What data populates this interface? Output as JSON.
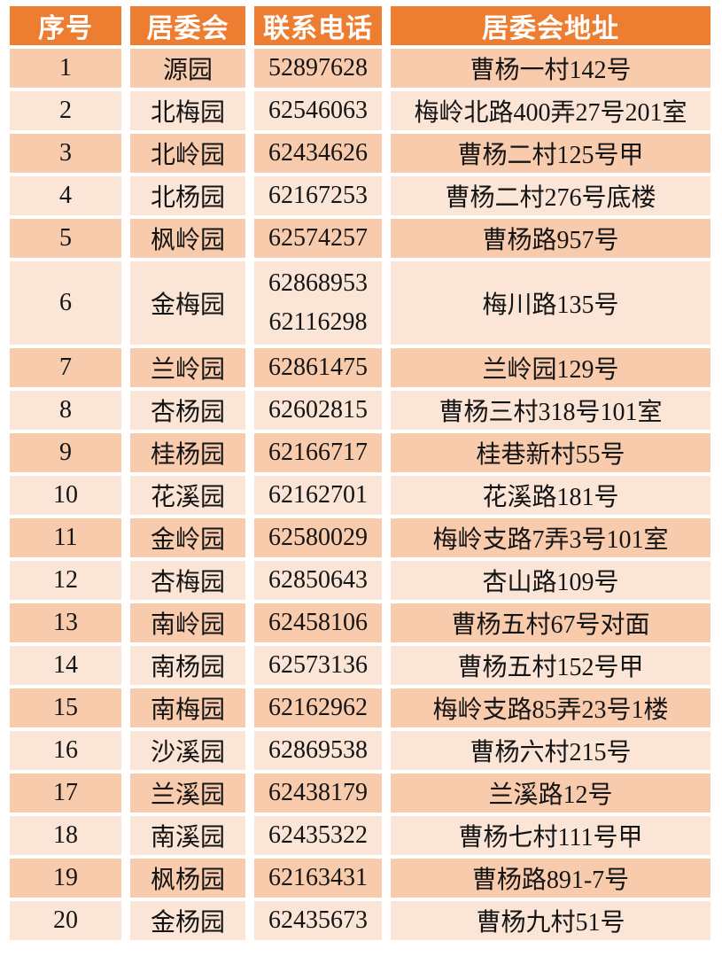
{
  "table": {
    "headers": [
      "序号",
      "居委会",
      "联系电话",
      "居委会地址"
    ],
    "rows": [
      {
        "no": "1",
        "name": "源园",
        "phones": [
          "52897628"
        ],
        "address": "曹杨一村142号"
      },
      {
        "no": "2",
        "name": "北梅园",
        "phones": [
          "62546063"
        ],
        "address": "梅岭北路400弄27号201室"
      },
      {
        "no": "3",
        "name": "北岭园",
        "phones": [
          "62434626"
        ],
        "address": "曹杨二村125号甲"
      },
      {
        "no": "4",
        "name": "北杨园",
        "phones": [
          "62167253"
        ],
        "address": "曹杨二村276号底楼"
      },
      {
        "no": "5",
        "name": "枫岭园",
        "phones": [
          "62574257"
        ],
        "address": "曹杨路957号"
      },
      {
        "no": "6",
        "name": "金梅园",
        "phones": [
          "62868953",
          "62116298"
        ],
        "address": "梅川路135号"
      },
      {
        "no": "7",
        "name": "兰岭园",
        "phones": [
          "62861475"
        ],
        "address": "兰岭园129号"
      },
      {
        "no": "8",
        "name": "杏杨园",
        "phones": [
          "62602815"
        ],
        "address": "曹杨三村318号101室"
      },
      {
        "no": "9",
        "name": "桂杨园",
        "phones": [
          "62166717"
        ],
        "address": "桂巷新村55号"
      },
      {
        "no": "10",
        "name": "花溪园",
        "phones": [
          "62162701"
        ],
        "address": "花溪路181号"
      },
      {
        "no": "11",
        "name": "金岭园",
        "phones": [
          "62580029"
        ],
        "address": "梅岭支路7弄3号101室"
      },
      {
        "no": "12",
        "name": "杏梅园",
        "phones": [
          "62850643"
        ],
        "address": "杏山路109号"
      },
      {
        "no": "13",
        "name": "南岭园",
        "phones": [
          "62458106"
        ],
        "address": "曹杨五村67号对面"
      },
      {
        "no": "14",
        "name": "南杨园",
        "phones": [
          "62573136"
        ],
        "address": "曹杨五村152号甲"
      },
      {
        "no": "15",
        "name": "南梅园",
        "phones": [
          "62162962"
        ],
        "address": "梅岭支路85弄23号1楼"
      },
      {
        "no": "16",
        "name": "沙溪园",
        "phones": [
          "62869538"
        ],
        "address": "曹杨六村215号"
      },
      {
        "no": "17",
        "name": "兰溪园",
        "phones": [
          "62438179"
        ],
        "address": "兰溪路12号"
      },
      {
        "no": "18",
        "name": "南溪园",
        "phones": [
          "62435322"
        ],
        "address": "曹杨七村111号甲"
      },
      {
        "no": "19",
        "name": "枫杨园",
        "phones": [
          "62163431"
        ],
        "address": "曹杨路891-7号"
      },
      {
        "no": "20",
        "name": "金杨园",
        "phones": [
          "62435673"
        ],
        "address": "曹杨九村51号"
      }
    ],
    "colors": {
      "header_bg": "#ED7D31",
      "header_text": "#FFFFFF",
      "row_odd_bg": "#F8CBAD",
      "row_even_bg": "#FBE5D6",
      "grid": "#FFFFFF",
      "text": "#141414"
    }
  }
}
